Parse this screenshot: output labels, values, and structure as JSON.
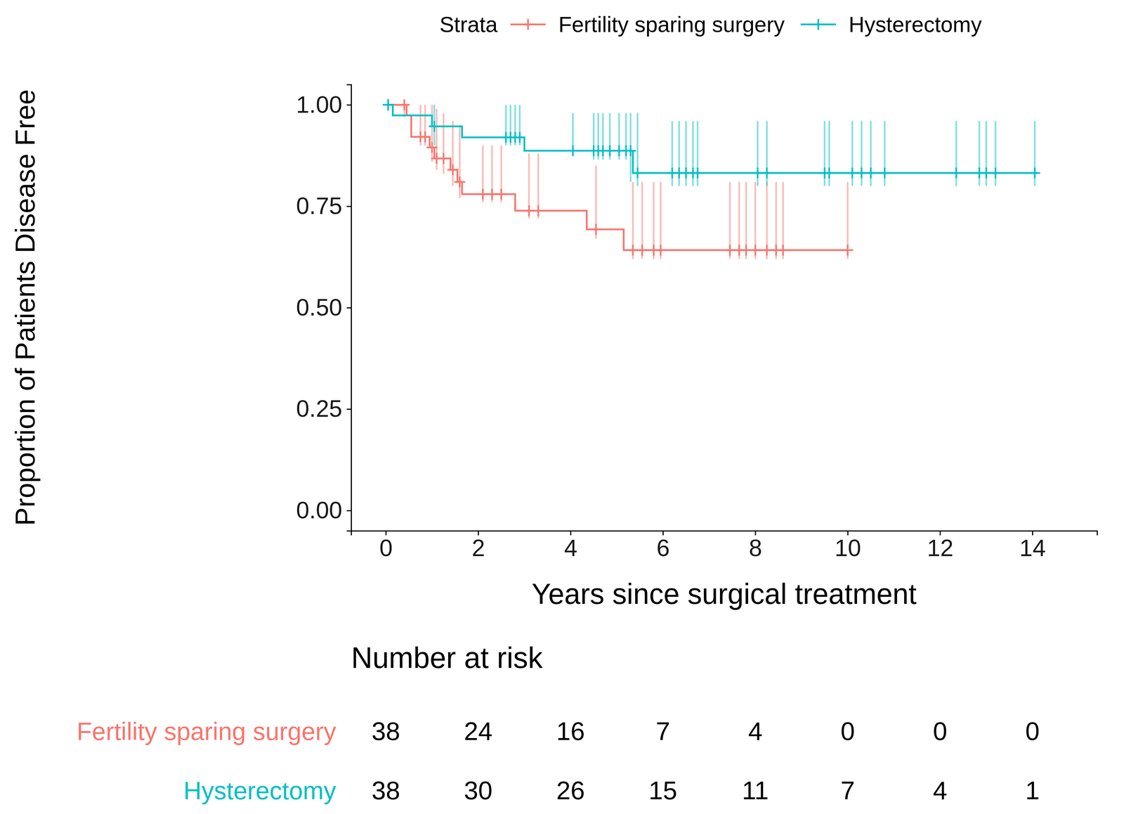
{
  "chart_data": {
    "type": "step",
    "x_label": "Years since surgical treatment",
    "y_label": "Proportion of Patients Disease Free",
    "legend_title": "Strata",
    "legend": "top",
    "marker": "cross",
    "xlim": [
      -0.75,
      15.4
    ],
    "ylim": [
      -0.05,
      1.05
    ],
    "xticks": [
      0,
      2,
      4,
      6,
      8,
      10,
      12,
      14
    ],
    "yticks": [
      {
        "value": 0,
        "label": "0.00"
      },
      {
        "value": 0.25,
        "label": "0.25"
      },
      {
        "value": 0.5,
        "label": "0.50"
      },
      {
        "value": 0.75,
        "label": "0.75"
      },
      {
        "value": 1,
        "label": "1.00"
      }
    ],
    "grid": false,
    "series": [
      {
        "name": "Fertility sparing surgery",
        "color": "#F8766D",
        "x": [
          0,
          0.45,
          0.55,
          0.95,
          1.05,
          1.4,
          1.55,
          1.65,
          2.8,
          4.35,
          5.15,
          10.0
        ],
        "values": [
          1.0,
          0.974,
          0.921,
          0.895,
          0.868,
          0.84,
          0.81,
          0.78,
          0.739,
          0.693,
          0.642,
          0.642
        ],
        "censor_x": [
          0.4,
          0.75,
          0.85,
          1.0,
          1.1,
          1.25,
          1.45,
          1.6,
          2.1,
          2.3,
          2.5,
          3.1,
          3.3,
          4.55,
          5.35,
          5.55,
          5.8,
          5.95,
          7.45,
          7.65,
          7.8,
          8.0,
          8.25,
          8.45,
          8.6,
          10.0
        ],
        "censor_y": [
          1.0,
          0.921,
          0.921,
          0.895,
          0.868,
          0.868,
          0.84,
          0.81,
          0.78,
          0.78,
          0.78,
          0.739,
          0.739,
          0.693,
          0.642,
          0.642,
          0.642,
          0.642,
          0.642,
          0.642,
          0.642,
          0.642,
          0.642,
          0.642,
          0.642,
          0.642
        ],
        "censor_lo": [
          0.97,
          0.9,
          0.9,
          0.86,
          0.84,
          0.83,
          0.8,
          0.77,
          0.76,
          0.76,
          0.76,
          0.72,
          0.72,
          0.67,
          0.62,
          0.62,
          0.62,
          0.62,
          0.62,
          0.62,
          0.62,
          0.62,
          0.62,
          0.62,
          0.62,
          0.62
        ],
        "censor_hi": [
          1.0,
          1.0,
          1.0,
          1.0,
          0.99,
          0.98,
          0.96,
          0.95,
          0.9,
          0.9,
          0.9,
          0.88,
          0.88,
          0.85,
          0.81,
          0.81,
          0.81,
          0.81,
          0.81,
          0.81,
          0.81,
          0.81,
          0.81,
          0.81,
          0.81,
          0.81
        ]
      },
      {
        "name": "Hysterectomy",
        "color": "#00BFC4",
        "x": [
          0,
          0.15,
          1.0,
          1.65,
          3.0,
          5.35,
          14.1
        ],
        "values": [
          1.0,
          0.974,
          0.947,
          0.92,
          0.887,
          0.832,
          0.832
        ],
        "censor_x": [
          0.05,
          1.05,
          2.6,
          2.7,
          2.8,
          2.9,
          4.05,
          4.5,
          4.6,
          4.7,
          4.85,
          5.05,
          5.2,
          5.3,
          5.45,
          6.2,
          6.35,
          6.5,
          6.65,
          6.75,
          8.05,
          8.25,
          9.5,
          9.6,
          10.1,
          10.3,
          10.5,
          10.8,
          12.35,
          12.85,
          13.0,
          13.2,
          14.05
        ],
        "censor_y": [
          1.0,
          0.947,
          0.92,
          0.92,
          0.92,
          0.92,
          0.887,
          0.887,
          0.887,
          0.887,
          0.887,
          0.887,
          0.887,
          0.887,
          0.832,
          0.832,
          0.832,
          0.832,
          0.832,
          0.832,
          0.832,
          0.832,
          0.832,
          0.832,
          0.832,
          0.832,
          0.832,
          0.832,
          0.832,
          0.832,
          0.832,
          0.832,
          0.832
        ],
        "censor_lo": [
          0.985,
          0.9,
          0.9,
          0.9,
          0.9,
          0.9,
          0.875,
          0.865,
          0.865,
          0.865,
          0.865,
          0.865,
          0.865,
          0.81,
          0.8,
          0.8,
          0.8,
          0.8,
          0.8,
          0.8,
          0.8,
          0.8,
          0.8,
          0.8,
          0.8,
          0.8,
          0.8,
          0.8,
          0.8,
          0.8,
          0.8,
          0.8,
          0.8
        ],
        "censor_hi": [
          1.015,
          1.0,
          1.0,
          1.0,
          1.0,
          1.0,
          0.98,
          0.98,
          0.98,
          0.98,
          0.98,
          0.98,
          0.98,
          0.98,
          0.98,
          0.96,
          0.96,
          0.96,
          0.96,
          0.96,
          0.96,
          0.96,
          0.96,
          0.96,
          0.96,
          0.96,
          0.96,
          0.96,
          0.96,
          0.96,
          0.96,
          0.96,
          0.96
        ]
      }
    ],
    "risk_table": {
      "title": "Number at risk",
      "times": [
        0,
        2,
        4,
        6,
        8,
        10,
        12,
        14
      ],
      "rows": [
        {
          "name": "Fertility sparing surgery",
          "color": "#F8766D",
          "values": [
            38,
            24,
            16,
            7,
            4,
            0,
            0,
            0
          ]
        },
        {
          "name": "Hysterectomy",
          "color": "#00BFC4",
          "values": [
            38,
            30,
            26,
            15,
            11,
            7,
            4,
            1
          ]
        }
      ]
    }
  }
}
